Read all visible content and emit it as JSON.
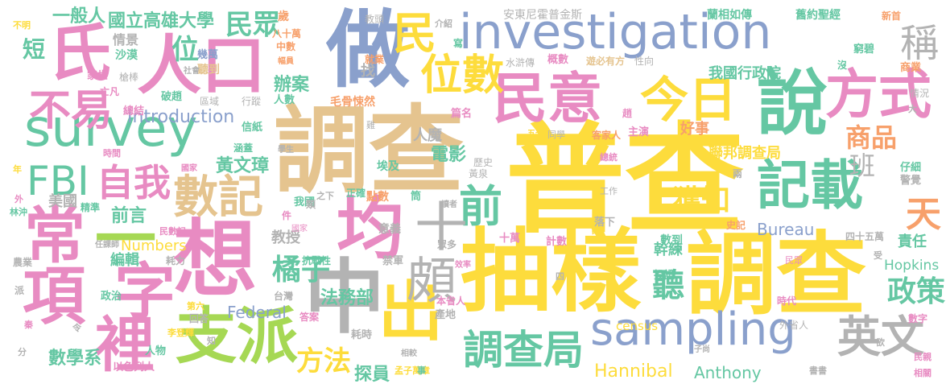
{
  "palette": {
    "yellow": "#fddc3c",
    "tan": "#e5c48f",
    "blue": "#8aa0cc",
    "pink": "#e88bc2",
    "green": "#65c7a3",
    "gray": "#b3b3b3",
    "orange": "#f7a06b",
    "lime": "#a6d854",
    "red": "#f4826b"
  },
  "words": [
    {
      "text": "普查",
      "color": "yellow"
    },
    {
      "text": "抽樣",
      "color": "yellow"
    },
    {
      "text": "調查",
      "color": "yellow"
    },
    {
      "text": "調查",
      "color": "tan"
    },
    {
      "text": "investigation",
      "color": "blue"
    },
    {
      "text": "人口",
      "color": "pink"
    },
    {
      "text": "做",
      "color": "blue"
    },
    {
      "text": "民意",
      "color": "pink"
    },
    {
      "text": "說",
      "color": "green"
    },
    {
      "text": "方式",
      "color": "pink"
    },
    {
      "text": "survey",
      "color": "green"
    },
    {
      "text": "氏",
      "color": "pink"
    },
    {
      "text": "常",
      "color": "pink"
    },
    {
      "text": "項",
      "color": "pink"
    },
    {
      "text": "想",
      "color": "pink"
    },
    {
      "text": "支派",
      "color": "lime"
    },
    {
      "text": "sampling",
      "color": "blue"
    },
    {
      "text": "中",
      "color": "gray"
    },
    {
      "text": "出",
      "color": "yellow"
    },
    {
      "text": "均",
      "color": "pink"
    },
    {
      "text": "記載",
      "color": "green"
    },
    {
      "text": "今日",
      "color": "yellow"
    },
    {
      "text": "位數",
      "color": "yellow"
    },
    {
      "text": "調查局",
      "color": "green"
    },
    {
      "text": "英文",
      "color": "gray"
    },
    {
      "text": "字",
      "color": "pink"
    },
    {
      "text": "裡",
      "color": "pink"
    },
    {
      "text": "一",
      "color": "lime"
    },
    {
      "text": "數記",
      "color": "tan"
    },
    {
      "text": "前",
      "color": "green"
    },
    {
      "text": "十",
      "color": "gray"
    },
    {
      "text": "頗",
      "color": "gray"
    },
    {
      "text": "FBI",
      "color": "green"
    },
    {
      "text": "自我",
      "color": "pink"
    },
    {
      "text": "不易",
      "color": "pink"
    },
    {
      "text": "民",
      "color": "yellow"
    },
    {
      "text": "稱",
      "color": "gray"
    },
    {
      "text": "天",
      "color": "orange"
    },
    {
      "text": "聽",
      "color": "green"
    },
    {
      "text": "政策",
      "color": "green"
    },
    {
      "text": "商品",
      "color": "orange"
    },
    {
      "text": "班",
      "color": "gray"
    },
    {
      "text": "獲知",
      "color": "yellow"
    },
    {
      "text": "橘子",
      "color": "green"
    },
    {
      "text": "方法",
      "color": "yellow"
    },
    {
      "text": "短",
      "color": "green"
    },
    {
      "text": "位",
      "color": "green"
    },
    {
      "text": "民眾",
      "color": "green"
    },
    {
      "text": "國立高雄大學",
      "color": "green"
    },
    {
      "text": "一般人",
      "color": "green"
    },
    {
      "text": "前言",
      "color": "green"
    },
    {
      "text": "Introduction",
      "color": "blue"
    },
    {
      "text": "黃文璋",
      "color": "green"
    },
    {
      "text": "法務部",
      "color": "green"
    },
    {
      "text": "電影",
      "color": "green"
    },
    {
      "text": "數學系",
      "color": "green"
    },
    {
      "text": "探員",
      "color": "green"
    },
    {
      "text": "Hannibal",
      "color": "yellow"
    },
    {
      "text": "Anthony",
      "color": "green"
    },
    {
      "text": "Bureau",
      "color": "blue"
    },
    {
      "text": "Federal",
      "color": "blue"
    },
    {
      "text": "Numbers",
      "color": "yellow"
    },
    {
      "text": "Hopkins",
      "color": "green"
    },
    {
      "text": "census",
      "color": "yellow"
    },
    {
      "text": "幹練",
      "color": "green"
    },
    {
      "text": "責任",
      "color": "green"
    },
    {
      "text": "我國行政院",
      "color": "green"
    },
    {
      "text": "聯邦調查局",
      "color": "yellow"
    },
    {
      "text": "辦案",
      "color": "green"
    },
    {
      "text": "教授",
      "color": "gray"
    },
    {
      "text": "編輯",
      "color": "green"
    },
    {
      "text": "人魔",
      "color": "gray"
    },
    {
      "text": "美國",
      "color": "gray"
    },
    {
      "text": "好事",
      "color": "orange"
    },
    {
      "text": "找",
      "color": "gray"
    },
    {
      "text": "情景",
      "color": "gray"
    },
    {
      "text": "沙漠",
      "color": "green"
    },
    {
      "text": "安東尼霍普金斯",
      "color": "gray"
    },
    {
      "text": "蘭相如傳",
      "color": "green"
    },
    {
      "text": "舊約聖經",
      "color": "green"
    },
    {
      "text": "幾萬",
      "color": "blue"
    },
    {
      "text": "聽到",
      "color": "tan"
    },
    {
      "text": "八十萬",
      "color": "orange"
    },
    {
      "text": "中數",
      "color": "orange"
    },
    {
      "text": "概數",
      "color": "pink"
    },
    {
      "text": "水滸傳",
      "color": "gray"
    },
    {
      "text": "遊必有方",
      "color": "tan"
    },
    {
      "text": "性向",
      "color": "gray"
    },
    {
      "text": "窮碧",
      "color": "green"
    },
    {
      "text": "商業",
      "color": "orange"
    },
    {
      "text": "家世",
      "color": "pink"
    },
    {
      "text": "槍棒",
      "color": "gray"
    },
    {
      "text": "亡凡",
      "color": "pink"
    },
    {
      "text": "破趙",
      "color": "green"
    },
    {
      "text": "區域",
      "color": "gray"
    },
    {
      "text": "行蹤",
      "color": "gray"
    },
    {
      "text": "人數",
      "color": "green"
    },
    {
      "text": "毛骨悚然",
      "color": "orange"
    },
    {
      "text": "篇名",
      "color": "pink"
    },
    {
      "text": "主演",
      "color": "pink"
    },
    {
      "text": "客家人",
      "color": "orange"
    },
    {
      "text": "同學",
      "color": "gray"
    },
    {
      "text": "總結",
      "color": "pink"
    },
    {
      "text": "信紙",
      "color": "green"
    },
    {
      "text": "涵蓋",
      "color": "green"
    },
    {
      "text": "時間",
      "color": "pink"
    },
    {
      "text": "歷史",
      "color": "gray"
    },
    {
      "text": "黃泉",
      "color": "gray"
    },
    {
      "text": "埃及",
      "color": "green"
    },
    {
      "text": "點數",
      "color": "orange"
    },
    {
      "text": "正確",
      "color": "green"
    },
    {
      "text": "我國",
      "color": "green"
    },
    {
      "text": "精準",
      "color": "green"
    },
    {
      "text": "意義",
      "color": "gray"
    },
    {
      "text": "十萬",
      "color": "pink"
    },
    {
      "text": "計數",
      "color": "pink"
    },
    {
      "text": "數到",
      "color": "green"
    },
    {
      "text": "四十五萬",
      "color": "gray"
    },
    {
      "text": "投證",
      "color": "green"
    },
    {
      "text": "時代",
      "color": "pink"
    },
    {
      "text": "外省人",
      "color": "gray"
    },
    {
      "text": "數字",
      "color": "pink"
    },
    {
      "text": "禁軍",
      "color": "gray"
    },
    {
      "text": "眾多",
      "color": "gray"
    },
    {
      "text": "抗戰性",
      "color": "green"
    },
    {
      "text": "政治",
      "color": "green"
    },
    {
      "text": "台灣",
      "color": "gray"
    },
    {
      "text": "耗力",
      "color": "gray"
    },
    {
      "text": "耗時",
      "color": "gray"
    },
    {
      "text": "產地",
      "color": "gray"
    },
    {
      "text": "本省人",
      "color": "pink"
    },
    {
      "text": "答案",
      "color": "pink"
    },
    {
      "text": "回答",
      "color": "gray"
    },
    {
      "text": "人物",
      "color": "green"
    },
    {
      "text": "以色列人",
      "color": "pink"
    },
    {
      "text": "李登輝",
      "color": "yellow"
    },
    {
      "text": "孟子萬章",
      "color": "yellow"
    },
    {
      "text": "落下",
      "color": "gray"
    },
    {
      "text": "警覺",
      "color": "gray"
    },
    {
      "text": "仔細",
      "color": "green"
    },
    {
      "text": "情況",
      "color": "gray"
    },
    {
      "text": "新首",
      "color": "orange"
    },
    {
      "text": "民眾",
      "color": "pink"
    },
    {
      "text": "民親",
      "color": "pink"
    },
    {
      "text": "相關",
      "color": "pink"
    },
    {
      "text": "農業",
      "color": "gray"
    },
    {
      "text": "不明",
      "color": "yellow"
    },
    {
      "text": "教頭",
      "color": "gray"
    },
    {
      "text": "介紹",
      "color": "gray"
    },
    {
      "text": "歲",
      "color": "orange"
    },
    {
      "text": "寫",
      "color": "green"
    },
    {
      "text": "就業",
      "color": "orange"
    },
    {
      "text": "沒",
      "color": "green"
    },
    {
      "text": "趙",
      "color": "pink"
    },
    {
      "text": "雞",
      "color": "gray"
    },
    {
      "text": "兩",
      "color": "gray"
    },
    {
      "text": "外",
      "color": "pink"
    },
    {
      "text": "派",
      "color": "gray"
    },
    {
      "text": "秦",
      "color": "pink"
    },
    {
      "text": "令",
      "color": "gray"
    },
    {
      "text": "分",
      "color": "gray"
    },
    {
      "text": "知",
      "color": "gray"
    },
    {
      "text": "件",
      "color": "pink"
    },
    {
      "text": "類",
      "color": "gray"
    },
    {
      "text": "筒",
      "color": "green"
    },
    {
      "text": "事",
      "color": "green"
    },
    {
      "text": "時",
      "color": "yellow"
    },
    {
      "text": "四",
      "color": "gray"
    },
    {
      "text": "工作",
      "color": "gray"
    },
    {
      "text": "史記",
      "color": "orange"
    },
    {
      "text": "大",
      "color": "gray"
    },
    {
      "text": "受",
      "color": "gray"
    },
    {
      "text": "欲",
      "color": "gray"
    },
    {
      "text": "書書",
      "color": "gray"
    },
    {
      "text": "年",
      "color": "yellow"
    },
    {
      "text": "林沖",
      "color": "green"
    },
    {
      "text": "第六",
      "color": "yellow"
    },
    {
      "text": "民數記",
      "color": "pink"
    },
    {
      "text": "任課師",
      "color": "gray"
    },
    {
      "text": "效率",
      "color": "pink"
    },
    {
      "text": "相較",
      "color": "gray"
    },
    {
      "text": "子尚",
      "color": "gray"
    },
    {
      "text": "之下",
      "color": "gray"
    },
    {
      "text": "讀者",
      "color": "gray"
    },
    {
      "text": "國家",
      "color": "pink"
    },
    {
      "text": "總統",
      "color": "pink"
    },
    {
      "text": "五十",
      "color": "yellow"
    },
    {
      "text": "學生",
      "color": "gray"
    },
    {
      "text": "社會",
      "color": "gray"
    },
    {
      "text": "幅員",
      "color": "orange"
    },
    {
      "text": "國家",
      "color": "pink"
    }
  ]
}
